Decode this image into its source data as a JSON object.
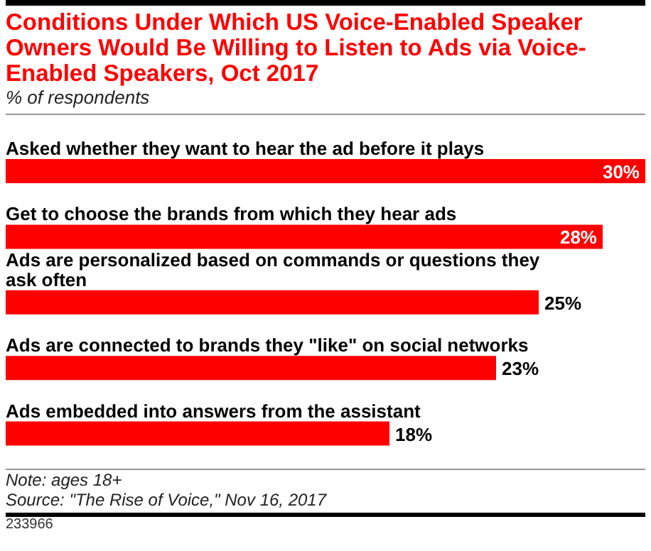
{
  "chart_data": {
    "type": "bar",
    "orientation": "horizontal",
    "title": "Conditions Under Which US Voice-Enabled Speaker Owners Would Be Willing to Listen to Ads via Voice-Enabled Speakers, Oct 2017",
    "subtitle": "% of respondents",
    "categories": [
      "Asked whether they want to hear the ad before it plays",
      "Get to choose the brands from which they hear ads",
      "Ads are personalized based on commands or questions they ask often",
      "Ads are connected to brands they \"like\" on social networks",
      "Ads embedded into answers from the assistant"
    ],
    "values": [
      30,
      28,
      25,
      23,
      18
    ],
    "value_labels": [
      "30%",
      "28%",
      "25%",
      "23%",
      "18%"
    ],
    "color": "#ff0000",
    "annotations": [
      "Note: ages 18+",
      "Source: \"The Rise of Voice,\" Nov 16, 2017",
      "233966"
    ]
  }
}
